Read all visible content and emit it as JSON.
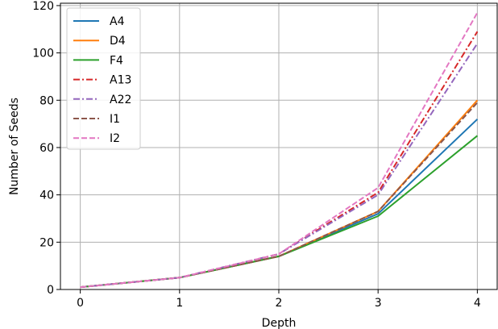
{
  "chart_data": {
    "type": "line",
    "xlabel": "Depth",
    "ylabel": "Number of Seeds",
    "x": [
      0,
      1,
      2,
      3,
      4
    ],
    "xticks": [
      "0",
      "1",
      "2",
      "3",
      "4"
    ],
    "yticks": [
      "0",
      "20",
      "40",
      "60",
      "80",
      "100",
      "120"
    ],
    "xlim": [
      -0.2,
      4.2
    ],
    "ylim": [
      0,
      121
    ],
    "grid": true,
    "legend_position": "upper-left",
    "series": [
      {
        "name": "A4",
        "values": [
          1,
          5,
          14,
          32,
          72
        ],
        "color": "#1f77b4",
        "dash": "solid"
      },
      {
        "name": "D4",
        "values": [
          1,
          5,
          14,
          33,
          80
        ],
        "color": "#ff7f0e",
        "dash": "solid"
      },
      {
        "name": "F4",
        "values": [
          1,
          5,
          14,
          31,
          65
        ],
        "color": "#2ca02c",
        "dash": "solid"
      },
      {
        "name": "A13",
        "values": [
          1,
          5,
          15,
          41,
          109
        ],
        "color": "#d62728",
        "dash": "dashdot"
      },
      {
        "name": "A22",
        "values": [
          1,
          5,
          15,
          40,
          104
        ],
        "color": "#9467bd",
        "dash": "dashdot"
      },
      {
        "name": "I1",
        "values": [
          1,
          5,
          14,
          33,
          79
        ],
        "color": "#8c564b",
        "dash": "dashed"
      },
      {
        "name": "I2",
        "values": [
          1,
          5,
          15,
          43,
          117
        ],
        "color": "#e377c2",
        "dash": "dashed"
      }
    ]
  }
}
